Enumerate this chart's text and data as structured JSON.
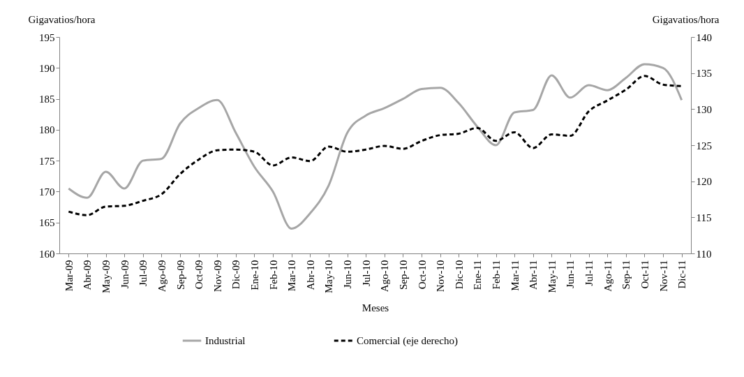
{
  "chart_data": {
    "type": "line",
    "xlabel": "Meses",
    "ylabel": "Gigavatios/hora",
    "y2label": "Gigavatios/hora",
    "categories": [
      "Mar-09",
      "Abr-09",
      "May-09",
      "Jun-09",
      "Jul-09",
      "Ago-09",
      "Sep-09",
      "Oct-09",
      "Nov-09",
      "Dic-09",
      "Ene-10",
      "Feb-10",
      "Mar-10",
      "Abr-10",
      "May-10",
      "Jun-10",
      "Jul-10",
      "Ago-10",
      "Sep-10",
      "Oct-10",
      "Nov-10",
      "Dic-10",
      "Ene-11",
      "Feb-11",
      "Mar-11",
      "Abr-11",
      "May-11",
      "Jun-11",
      "Jul-11",
      "Ago-11",
      "Sep-11",
      "Oct-11",
      "Nov-11",
      "Dic-11"
    ],
    "series": [
      {
        "name": "Industrial",
        "color": "#a6a6a6",
        "line_style": "solid",
        "values": [
          170.5,
          169.0,
          173.2,
          170.5,
          175.0,
          175.3,
          181.0,
          183.5,
          184.8,
          179.5,
          174.0,
          170.0,
          164.0,
          166.5,
          171.0,
          179.5,
          182.3,
          183.5,
          185.0,
          186.6,
          186.8,
          184.3,
          180.5,
          177.5,
          182.8,
          183.2,
          188.8,
          185.2,
          187.2,
          186.4,
          188.4,
          190.6,
          190.0,
          184.8
        ]
      },
      {
        "name": "Comercial (eje derecho)",
        "color": "#000000",
        "line_style": "dashed",
        "axis": "y2",
        "values": [
          115.8,
          115.3,
          116.5,
          116.6,
          117.3,
          118.2,
          121.0,
          123.0,
          124.3,
          124.4,
          124.1,
          122.2,
          123.3,
          122.8,
          124.8,
          124.1,
          124.4,
          124.9,
          124.5,
          125.6,
          126.4,
          126.6,
          127.4,
          125.6,
          126.8,
          124.6,
          126.5,
          126.3,
          129.7,
          131.2,
          132.7,
          134.6,
          133.4,
          133.2
        ]
      }
    ],
    "ylim": [
      160,
      195
    ],
    "yticks": [
      160,
      165,
      170,
      175,
      180,
      185,
      190,
      195
    ],
    "y2lim": [
      110,
      140
    ],
    "y2ticks": [
      110,
      115,
      120,
      125,
      130,
      135,
      140
    ],
    "grid": false,
    "legend": "bottom"
  }
}
